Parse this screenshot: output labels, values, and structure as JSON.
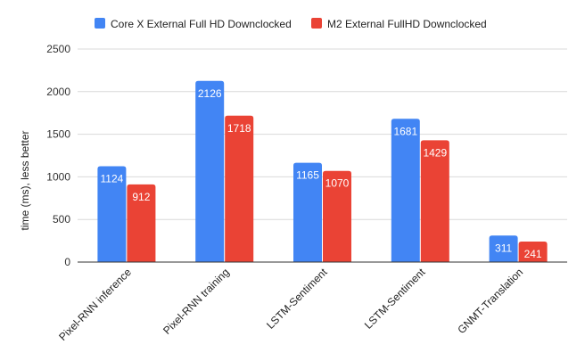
{
  "chart_data": {
    "type": "bar",
    "categories": [
      "Pixel-RNN inference",
      "Pixel-RNN training",
      "LSTM-Sentiment",
      "LSTM-Sentiment",
      "GNMT-Translation"
    ],
    "series": [
      {
        "name": "Core X External Full HD Downclocked",
        "values": [
          1124,
          2126,
          1165,
          1681,
          311
        ],
        "color": "#4285f4"
      },
      {
        "name": "M2 External FullHD Downclocked",
        "values": [
          912,
          1718,
          1070,
          1429,
          241
        ],
        "color": "#ea4335"
      }
    ],
    "ylabel": "time (ms), less better",
    "xlabel": "",
    "ylim": [
      0,
      2500
    ],
    "yticks": [
      0,
      500,
      1000,
      1500,
      2000,
      2500
    ],
    "grid": true,
    "legend_position": "top",
    "gridline_color": "#d9d9d9",
    "axis_color": "#333333"
  }
}
